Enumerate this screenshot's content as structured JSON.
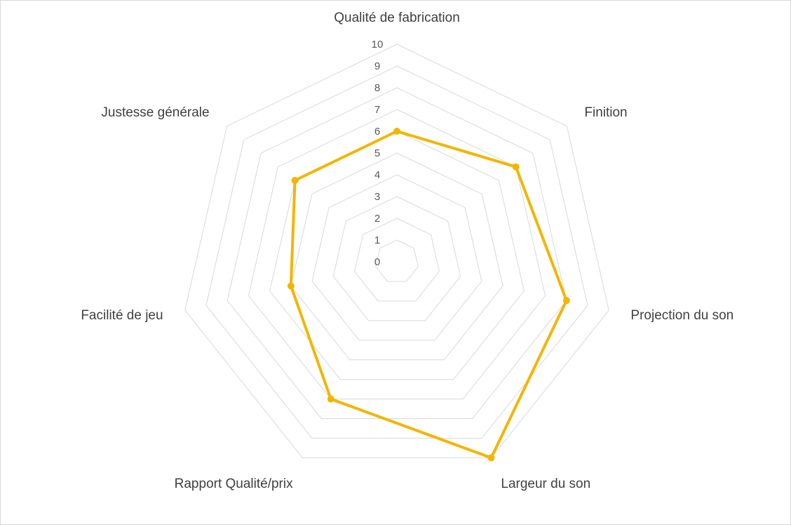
{
  "chart_data": {
    "type": "radar",
    "categories": [
      "Qualité de fabrication",
      "Finition",
      "Projection du son",
      "Largeur du son",
      "Rapport Qualité/prix",
      "Facilité de jeu",
      "Justesse générale"
    ],
    "series": [
      {
        "values": [
          6,
          7,
          8,
          10,
          7,
          5,
          6
        ]
      }
    ],
    "rlim": [
      0,
      10
    ],
    "ticks": [
      0,
      1,
      2,
      3,
      4,
      5,
      6,
      7,
      8,
      9,
      10
    ],
    "grid": true,
    "legend": "none",
    "colors": {
      "series": "#f2b600",
      "grid": "#d9d9d9",
      "frame": "#d9d9d9"
    }
  }
}
